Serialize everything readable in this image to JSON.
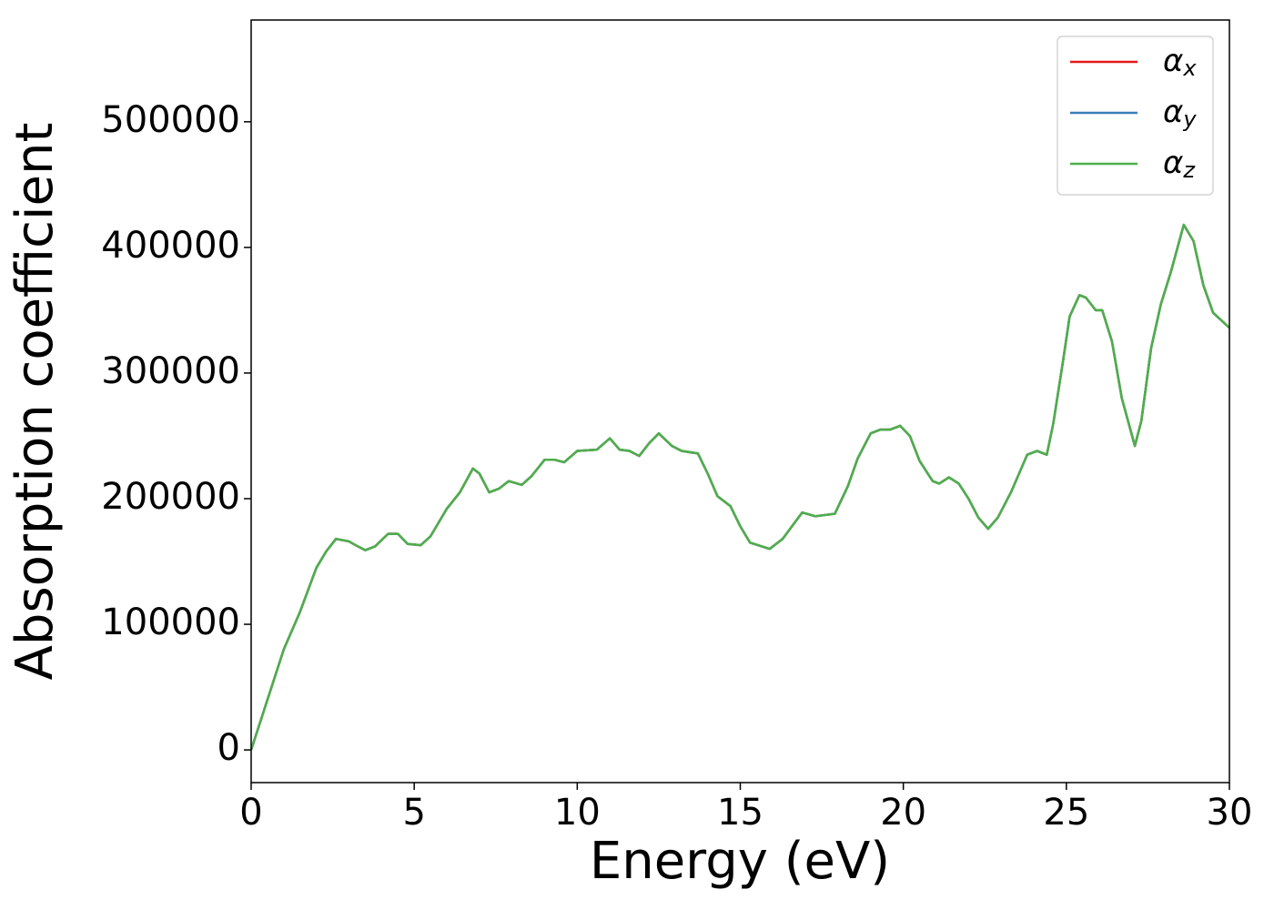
{
  "chart_data": {
    "type": "line",
    "xlabel": "Energy (eV)",
    "ylabel": "Absorption coefficient",
    "x": [
      0,
      0.5,
      1.0,
      1.5,
      2.0,
      2.3,
      2.6,
      3.0,
      3.2,
      3.5,
      3.8,
      4.2,
      4.5,
      4.8,
      5.2,
      5.5,
      6.0,
      6.4,
      6.8,
      7.0,
      7.3,
      7.6,
      7.9,
      8.3,
      8.6,
      9.0,
      9.3,
      9.6,
      10.0,
      10.6,
      11.0,
      11.3,
      11.6,
      11.9,
      12.2,
      12.5,
      12.9,
      13.2,
      13.7,
      14.0,
      14.3,
      14.7,
      15.0,
      15.3,
      15.9,
      16.3,
      16.9,
      17.3,
      17.6,
      17.9,
      18.3,
      18.6,
      19.0,
      19.3,
      19.6,
      19.9,
      20.2,
      20.5,
      20.9,
      21.1,
      21.4,
      21.7,
      22.0,
      22.3,
      22.6,
      22.9,
      23.3,
      23.8,
      24.1,
      24.4,
      24.6,
      24.9,
      25.1,
      25.4,
      25.6,
      25.9,
      26.1,
      26.4,
      26.7,
      27.1,
      27.3,
      27.6,
      27.9,
      28.2,
      28.6,
      28.9,
      29.2,
      29.5,
      30.0
    ],
    "series": [
      {
        "name": "αx",
        "color": "#e41a1c",
        "values": [
          0,
          40000,
          80000,
          110000,
          145000,
          158000,
          168000,
          166000,
          163000,
          159000,
          162000,
          172000,
          172000,
          164000,
          163000,
          170000,
          192000,
          205000,
          224000,
          220000,
          205000,
          208000,
          214000,
          211000,
          218000,
          231000,
          231000,
          229000,
          238000,
          239000,
          248000,
          239000,
          238000,
          234000,
          244000,
          252000,
          242000,
          238000,
          236000,
          220000,
          202000,
          194000,
          178000,
          165000,
          160000,
          168000,
          189000,
          186000,
          187000,
          188000,
          210000,
          232000,
          252000,
          255000,
          255000,
          258000,
          250000,
          230000,
          214000,
          212000,
          217000,
          212000,
          200000,
          185000,
          176000,
          185000,
          205000,
          235000,
          238000,
          235000,
          260000,
          310000,
          345000,
          362000,
          360000,
          350000,
          350000,
          325000,
          280000,
          242000,
          262000,
          320000,
          355000,
          380000,
          418000,
          405000,
          370000,
          348000,
          336000
        ]
      },
      {
        "name": "αy",
        "color": "#377eb8",
        "values": [
          0,
          40000,
          80000,
          110000,
          145000,
          158000,
          168000,
          166000,
          163000,
          159000,
          162000,
          172000,
          172000,
          164000,
          163000,
          170000,
          192000,
          205000,
          224000,
          220000,
          205000,
          208000,
          214000,
          211000,
          218000,
          231000,
          231000,
          229000,
          238000,
          239000,
          248000,
          239000,
          238000,
          234000,
          244000,
          252000,
          242000,
          238000,
          236000,
          220000,
          202000,
          194000,
          178000,
          165000,
          160000,
          168000,
          189000,
          186000,
          187000,
          188000,
          210000,
          232000,
          252000,
          255000,
          255000,
          258000,
          250000,
          230000,
          214000,
          212000,
          217000,
          212000,
          200000,
          185000,
          176000,
          185000,
          205000,
          235000,
          238000,
          235000,
          260000,
          310000,
          345000,
          362000,
          360000,
          350000,
          350000,
          325000,
          280000,
          242000,
          262000,
          320000,
          355000,
          380000,
          418000,
          405000,
          370000,
          348000,
          336000
        ]
      },
      {
        "name": "αz",
        "color": "#4daf4a",
        "values": [
          0,
          40000,
          80000,
          110000,
          145000,
          158000,
          168000,
          166000,
          163000,
          159000,
          162000,
          172000,
          172000,
          164000,
          163000,
          170000,
          192000,
          205000,
          224000,
          220000,
          205000,
          208000,
          214000,
          211000,
          218000,
          231000,
          231000,
          229000,
          238000,
          239000,
          248000,
          239000,
          238000,
          234000,
          244000,
          252000,
          242000,
          238000,
          236000,
          220000,
          202000,
          194000,
          178000,
          165000,
          160000,
          168000,
          189000,
          186000,
          187000,
          188000,
          210000,
          232000,
          252000,
          255000,
          255000,
          258000,
          250000,
          230000,
          214000,
          212000,
          217000,
          212000,
          200000,
          185000,
          176000,
          185000,
          205000,
          235000,
          238000,
          235000,
          260000,
          310000,
          345000,
          362000,
          360000,
          350000,
          350000,
          325000,
          280000,
          242000,
          262000,
          320000,
          355000,
          380000,
          418000,
          405000,
          370000,
          348000,
          336000
        ]
      }
    ],
    "xlim": [
      0,
      30
    ],
    "xticks": [
      0,
      5,
      10,
      15,
      20,
      25,
      30
    ],
    "ylim": [
      -26000,
      581000
    ],
    "yticks": [
      0,
      100000,
      200000,
      300000,
      400000,
      500000
    ],
    "legend": "upper right",
    "grid": false
  }
}
